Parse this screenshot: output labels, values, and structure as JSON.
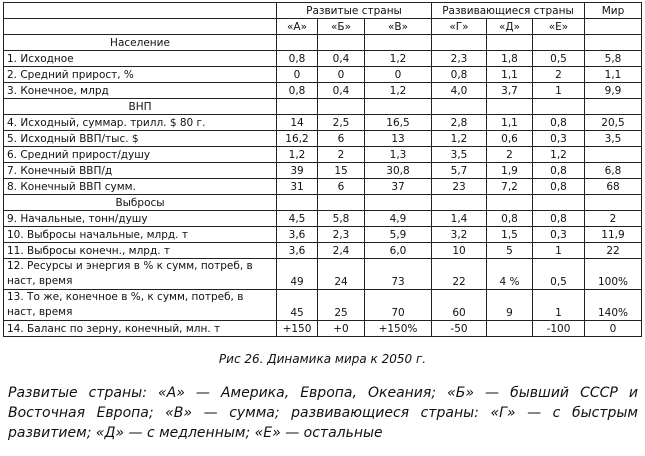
{
  "table": {
    "header": {
      "group_1": "Развитые страны",
      "group_2": "Развивающиеся страны",
      "world": "Мир",
      "columns": [
        "«А»",
        "«Б»",
        "«В»",
        "«Г»",
        "«Д»",
        "«Е»"
      ]
    },
    "sections": [
      {
        "title": "Население",
        "rows": [
          [
            "1. Исходное",
            "0,8",
            "0,4",
            "1,2",
            "2,3",
            "1,8",
            "0,5",
            "5,8"
          ],
          [
            "2. Средний прирост, %",
            "0",
            "0",
            "0",
            "0,8",
            "1,1",
            "2",
            "1,1"
          ],
          [
            "3. Конечное, млрд",
            "0,8",
            "0,4",
            "1,2",
            "4,0",
            "3,7",
            "1",
            "9,9"
          ]
        ]
      },
      {
        "title": "ВНП",
        "rows": [
          [
            "4. Исходный, суммар. трилл. $ 80 г.",
            "14",
            "2,5",
            "16,5",
            "2,8",
            "1,1",
            "0,8",
            "20,5"
          ],
          [
            "5. Исходный ВВП/тыс. $",
            "16,2",
            "6",
            "13",
            "1,2",
            "0,6",
            "0,3",
            "3,5"
          ],
          [
            "6. Средний прирост/душу",
            "1,2",
            "2",
            "1,3",
            "3,5",
            "2",
            "1,2",
            null
          ],
          [
            "7. Конечный ВВП/д",
            "39",
            "15",
            "30,8",
            "5,7",
            "1,9",
            "0,8",
            "6,8"
          ],
          [
            "8. Конечный ВВП сумм.",
            "31",
            "6",
            "37",
            "23",
            "7,2",
            "0,8",
            "68"
          ]
        ]
      },
      {
        "title": "Выбросы",
        "rows": [
          [
            "9. Начальные, тонн/душу",
            "4,5",
            "5,8",
            "4,9",
            "1,4",
            "0,8",
            "0,8",
            "2"
          ],
          [
            "10. Выбросы начальные, млрд. т",
            "3,6",
            "2,3",
            "5,9",
            "3,2",
            "1,5",
            "0,3",
            "11,9"
          ],
          [
            "11. Выбросы конечн., млрд. т",
            "3,6",
            "2,4",
            "6,0",
            "10",
            "5",
            "1",
            "22"
          ],
          [
            "12. Ресурсы и энергия в % к сумм, потреб, в наст, время",
            "49",
            "24",
            "73",
            "22",
            "4 %",
            "0,5",
            "100%"
          ],
          [
            "13. То же, конечное в %, к сумм, потреб, в наст, время",
            "45",
            "25",
            "70",
            "60",
            "9",
            "1",
            "140%"
          ],
          [
            "14. Баланс по зерну, конечный, млн. т",
            "+150",
            "+0",
            "+150%",
            "-50",
            null,
            "-100",
            "0"
          ]
        ]
      }
    ]
  },
  "caption": "Рис 26. Динамика мира к 2050 г.",
  "note": "Развитые страны: «А» — Америка, Европа, Океания; «Б» — бывший СССР и Восточная Европа; «В» — сумма; развивающиеся страны: «Г» — с быстрым развитием; «Д» — с медленным; «Е» — остальные"
}
